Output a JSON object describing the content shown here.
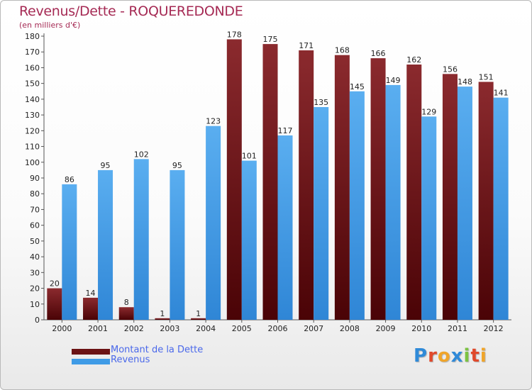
{
  "header": {
    "title": "Revenus/Dette - ROQUEREDONDE",
    "subtitle": "(en milliers d'€)"
  },
  "legend": [
    {
      "label": "Montant de la Dette",
      "color": "#6b1214"
    },
    {
      "label": "Revenus",
      "color": "#3f9be6"
    }
  ],
  "brand": {
    "letters": [
      "P",
      "r",
      "o",
      "x",
      "i",
      "t",
      "i"
    ],
    "colors": [
      "#2f8ad8",
      "#e0492b",
      "#f0a52a",
      "#2f8ad8",
      "#7cc242",
      "#e0492b",
      "#f0a52a"
    ]
  },
  "colors": {
    "debt_top": "#8b2a2e",
    "debt_bottom": "#4a0306",
    "rev_top": "#5aaef0",
    "rev_bottom": "#2f86d6",
    "title": "#a52a54",
    "legend_text": "#4a68ea"
  },
  "chart_data": {
    "type": "bar",
    "title": "Revenus/Dette - ROQUEREDONDE",
    "ylabel": "(en milliers d'€)",
    "xlabel": "",
    "categories": [
      "2000",
      "2001",
      "2002",
      "2003",
      "2004",
      "2005",
      "2006",
      "2007",
      "2008",
      "2009",
      "2010",
      "2011",
      "2012"
    ],
    "series": [
      {
        "name": "Montant de la Dette",
        "values": [
          20,
          14,
          8,
          1,
          1,
          178,
          175,
          171,
          168,
          166,
          162,
          156,
          151
        ]
      },
      {
        "name": "Revenus",
        "values": [
          86,
          95,
          102,
          95,
          123,
          101,
          117,
          135,
          145,
          149,
          129,
          148,
          141
        ]
      }
    ],
    "ylim": [
      0,
      180
    ],
    "yticks": [
      0,
      10,
      20,
      30,
      40,
      50,
      60,
      70,
      80,
      90,
      100,
      110,
      120,
      130,
      140,
      150,
      160,
      170,
      180
    ],
    "grid": false,
    "legend_position": "bottom-left"
  }
}
